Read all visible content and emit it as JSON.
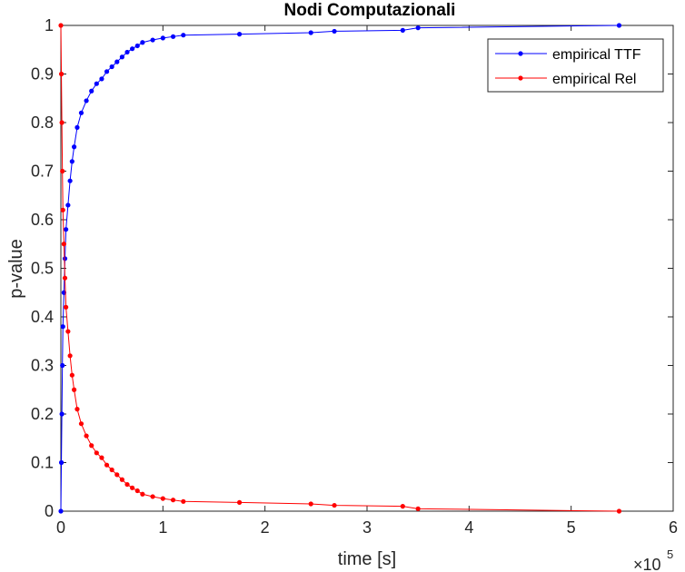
{
  "chart_data": {
    "type": "line",
    "title": "Nodi Computazionali",
    "xlabel": "time [s]",
    "ylabel": "p-value",
    "x_multiplier": {
      "base": "×10",
      "exponent": "5"
    },
    "xlim": [
      0,
      6
    ],
    "ylim": [
      0,
      1
    ],
    "x_ticks": [
      "0",
      "1",
      "2",
      "3",
      "4",
      "5",
      "6"
    ],
    "y_ticks": [
      "0",
      "0.1",
      "0.2",
      "0.3",
      "0.4",
      "0.5",
      "0.6",
      "0.7",
      "0.8",
      "0.9",
      "1"
    ],
    "grid": false,
    "legend_position": "top-right",
    "series": [
      {
        "name": "empirical TTF",
        "color": "#0000ff",
        "x": [
          0,
          0.005,
          0.01,
          0.015,
          0.02,
          0.03,
          0.04,
          0.05,
          0.07,
          0.09,
          0.11,
          0.13,
          0.16,
          0.2,
          0.25,
          0.3,
          0.35,
          0.4,
          0.45,
          0.5,
          0.55,
          0.6,
          0.65,
          0.7,
          0.75,
          0.8,
          0.9,
          1.0,
          1.1,
          1.2,
          1.75,
          2.45,
          2.68,
          3.35,
          3.5,
          5.47
        ],
        "y": [
          0,
          0.1,
          0.2,
          0.3,
          0.38,
          0.45,
          0.52,
          0.58,
          0.63,
          0.68,
          0.72,
          0.75,
          0.79,
          0.82,
          0.845,
          0.865,
          0.88,
          0.89,
          0.905,
          0.915,
          0.925,
          0.935,
          0.945,
          0.952,
          0.958,
          0.965,
          0.97,
          0.974,
          0.977,
          0.98,
          0.982,
          0.985,
          0.988,
          0.99,
          0.995,
          1.0
        ]
      },
      {
        "name": "empirical Rel",
        "color": "#ff0000",
        "x": [
          0,
          0.005,
          0.01,
          0.015,
          0.02,
          0.03,
          0.04,
          0.05,
          0.07,
          0.09,
          0.11,
          0.13,
          0.16,
          0.2,
          0.25,
          0.3,
          0.35,
          0.4,
          0.45,
          0.5,
          0.55,
          0.6,
          0.65,
          0.7,
          0.75,
          0.8,
          0.9,
          1.0,
          1.1,
          1.2,
          1.75,
          2.45,
          2.68,
          3.35,
          3.5,
          5.47
        ],
        "y": [
          1,
          0.9,
          0.8,
          0.7,
          0.62,
          0.55,
          0.48,
          0.42,
          0.37,
          0.32,
          0.28,
          0.25,
          0.21,
          0.18,
          0.155,
          0.135,
          0.12,
          0.11,
          0.095,
          0.085,
          0.075,
          0.065,
          0.055,
          0.048,
          0.042,
          0.035,
          0.03,
          0.026,
          0.023,
          0.02,
          0.018,
          0.015,
          0.012,
          0.01,
          0.005,
          0
        ]
      }
    ]
  }
}
